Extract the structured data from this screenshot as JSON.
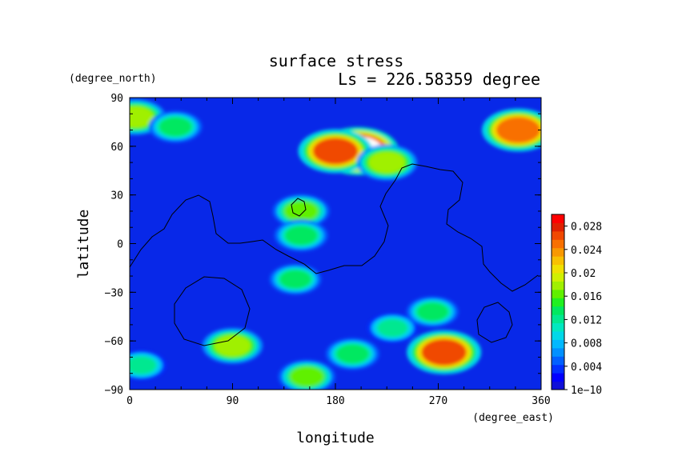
{
  "chart_data": {
    "type": "heatmap",
    "title": "surface stress",
    "subtitle": "Ls = 226.58359 degree",
    "xlabel": "longitude",
    "ylabel": "latitude",
    "x_units": "(degree_east)",
    "y_units": "(degree_north)",
    "xlim": [
      0,
      360
    ],
    "ylim": [
      -90,
      90
    ],
    "x_ticks": [
      "0",
      "90",
      "180",
      "270",
      "360"
    ],
    "y_ticks": [
      "90",
      "60",
      "30",
      "0",
      "−30",
      "−60",
      "−90"
    ],
    "colorbar": {
      "min": 1e-10,
      "max": 0.03,
      "tick_labels": [
        "1e−10",
        "0.004",
        "0.008",
        "0.012",
        "0.016",
        "0.02",
        "0.024",
        "0.028"
      ],
      "colors": [
        "#1010d8",
        "#0000ff",
        "#0030ff",
        "#0060ff",
        "#0090ff",
        "#00b8ff",
        "#00d8e8",
        "#00e8c0",
        "#00e890",
        "#00e860",
        "#20f020",
        "#60f000",
        "#a0f000",
        "#d0f000",
        "#f0e000",
        "#f8c000",
        "#f89800",
        "#f87000",
        "#f04800",
        "#e02000",
        "#ff0000"
      ]
    },
    "background_value": 0.002,
    "features": [
      {
        "lon": 200,
        "lat": 57,
        "value": 0.031
      },
      {
        "lon": 180,
        "lat": 57,
        "value": 0.026
      },
      {
        "lon": 340,
        "lat": 70,
        "value": 0.025
      },
      {
        "lon": 275,
        "lat": -67,
        "value": 0.026
      },
      {
        "lon": 155,
        "lat": -82,
        "value": 0.016
      },
      {
        "lon": 150,
        "lat": 20,
        "value": 0.016
      },
      {
        "lon": 150,
        "lat": 5,
        "value": 0.014
      },
      {
        "lon": 145,
        "lat": -22,
        "value": 0.013
      },
      {
        "lon": 225,
        "lat": 50,
        "value": 0.018
      },
      {
        "lon": 90,
        "lat": -63,
        "value": 0.018
      },
      {
        "lon": 195,
        "lat": -68,
        "value": 0.014
      },
      {
        "lon": 230,
        "lat": -52,
        "value": 0.012
      },
      {
        "lon": 10,
        "lat": -75,
        "value": 0.012
      },
      {
        "lon": 5,
        "lat": 78,
        "value": 0.018
      },
      {
        "lon": 40,
        "lat": 72,
        "value": 0.014
      },
      {
        "lon": 265,
        "lat": -42,
        "value": 0.013
      }
    ],
    "contours": "coastline outline (black)"
  }
}
